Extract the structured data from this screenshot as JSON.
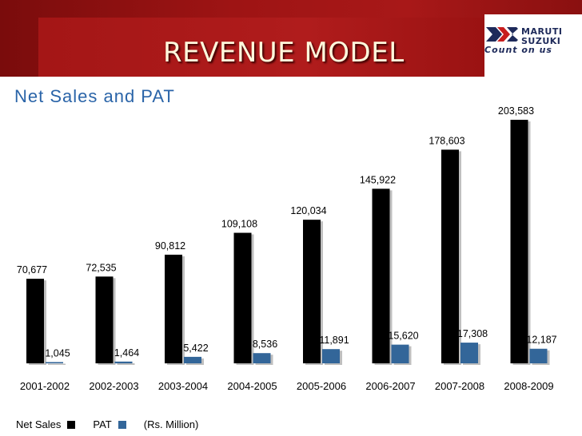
{
  "slide": {
    "title": "REVENUE MODEL",
    "logo_line1": "MARUTI",
    "logo_line2": "SUZUKI",
    "logo_tagline": "Count on us"
  },
  "chart_data": {
    "type": "bar",
    "title": "Net Sales and PAT",
    "categories": [
      "2001-2002",
      "2002-2003",
      "2003-2004",
      "2004-2005",
      "2005-2006",
      "2006-2007",
      "2007-2008",
      "2008-2009"
    ],
    "series": [
      {
        "name": "Net Sales",
        "color": "#000000",
        "values": [
          70677,
          72535,
          90812,
          109108,
          120034,
          145922,
          178603,
          203583
        ],
        "labels": [
          "70,677",
          "72,535",
          "90,812",
          "109,108",
          "120,034",
          "145,922",
          "178,603",
          "203,583"
        ]
      },
      {
        "name": "PAT",
        "color": "#336699",
        "values": [
          1045,
          1464,
          5422,
          8536,
          11891,
          15620,
          17308,
          12187
        ],
        "labels": [
          "1,045",
          "1,464",
          "5,422",
          "8,536",
          "11,891",
          "15,620",
          "17,308",
          "12,187"
        ]
      }
    ],
    "xlabel": "",
    "ylabel": "",
    "unit_note": "(Rs. Million)",
    "legend_position": "bottom-left",
    "grid": false
  }
}
